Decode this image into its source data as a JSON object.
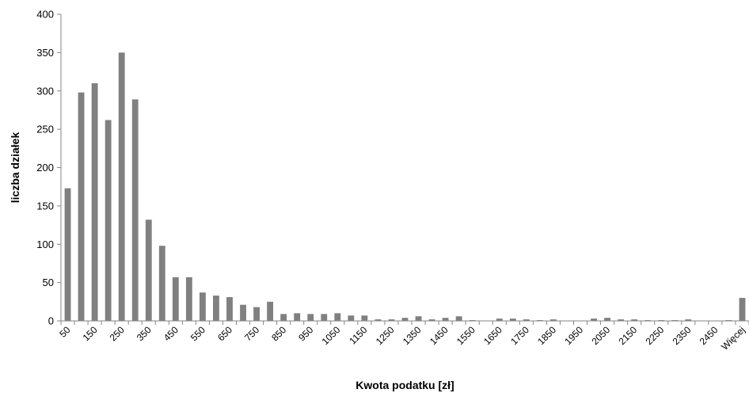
{
  "chart_data": {
    "type": "bar",
    "title": "",
    "xlabel": "Kwota podatku [zł]",
    "ylabel": "liczba działek",
    "ylim": [
      0,
      400
    ],
    "yticks": [
      0,
      50,
      100,
      150,
      200,
      250,
      300,
      350,
      400
    ],
    "grid": false,
    "legend": "none",
    "bar_color": "#808080",
    "categories": [
      "50",
      "100",
      "150",
      "200",
      "250",
      "300",
      "350",
      "400",
      "450",
      "500",
      "550",
      "600",
      "650",
      "700",
      "750",
      "800",
      "850",
      "900",
      "950",
      "1000",
      "1050",
      "1100",
      "1150",
      "1200",
      "1250",
      "1300",
      "1350",
      "1400",
      "1450",
      "1500",
      "1550",
      "1600",
      "1650",
      "1700",
      "1750",
      "1800",
      "1850",
      "1900",
      "1950",
      "2000",
      "2050",
      "2100",
      "2150",
      "2200",
      "2250",
      "2300",
      "2350",
      "2400",
      "2450",
      "2500",
      "Więcej"
    ],
    "values": [
      173,
      298,
      310,
      262,
      350,
      289,
      132,
      98,
      57,
      57,
      37,
      33,
      31,
      21,
      18,
      25,
      9,
      10,
      9,
      9,
      10,
      7,
      7,
      2,
      2,
      4,
      6,
      2,
      4,
      6,
      1,
      0,
      3,
      3,
      2,
      1,
      2,
      0,
      0,
      3,
      4,
      2,
      2,
      1,
      1,
      1,
      2,
      0,
      0,
      1,
      30
    ],
    "labeled_categories": [
      "50",
      "150",
      "250",
      "350",
      "450",
      "550",
      "650",
      "750",
      "850",
      "950",
      "1050",
      "1150",
      "1250",
      "1350",
      "1450",
      "1550",
      "1650",
      "1750",
      "1850",
      "1950",
      "2050",
      "2150",
      "2250",
      "2350",
      "2450",
      "Więcej"
    ]
  }
}
